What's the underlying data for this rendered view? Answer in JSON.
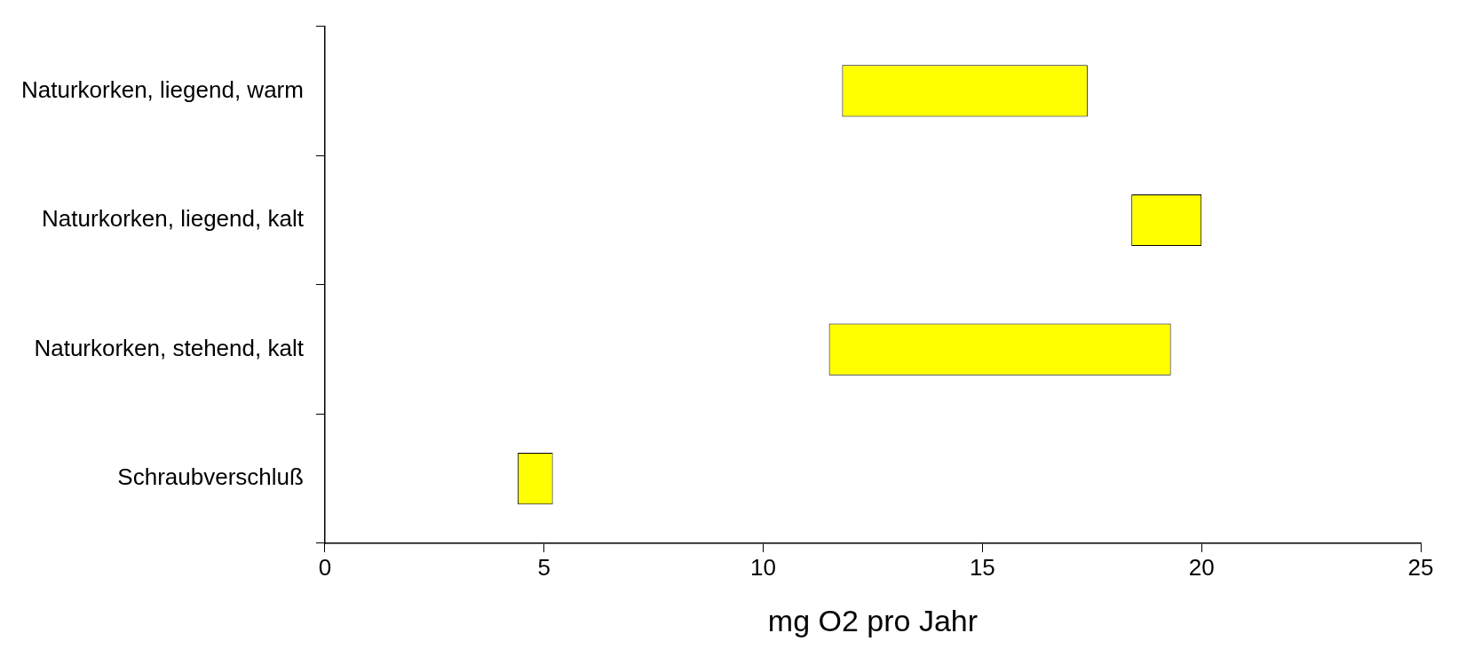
{
  "chart_data": {
    "type": "bar",
    "orientation": "horizontal",
    "xlabel": "mg O2 pro Jahr",
    "categories": [
      "Naturkorken, liegend, warm",
      "Naturkorken, liegend, kalt",
      "Naturkorken, stehend, kalt",
      "Schraubverschluß"
    ],
    "base": [
      11.8,
      18.4,
      11.5,
      4.4
    ],
    "values": [
      5.6,
      1.6,
      7.8,
      0.8
    ],
    "color": "#ffff00",
    "xlim": [
      0,
      25
    ],
    "xticks": [
      0,
      5,
      10,
      15,
      20,
      25
    ],
    "grid": false,
    "legend": false
  }
}
